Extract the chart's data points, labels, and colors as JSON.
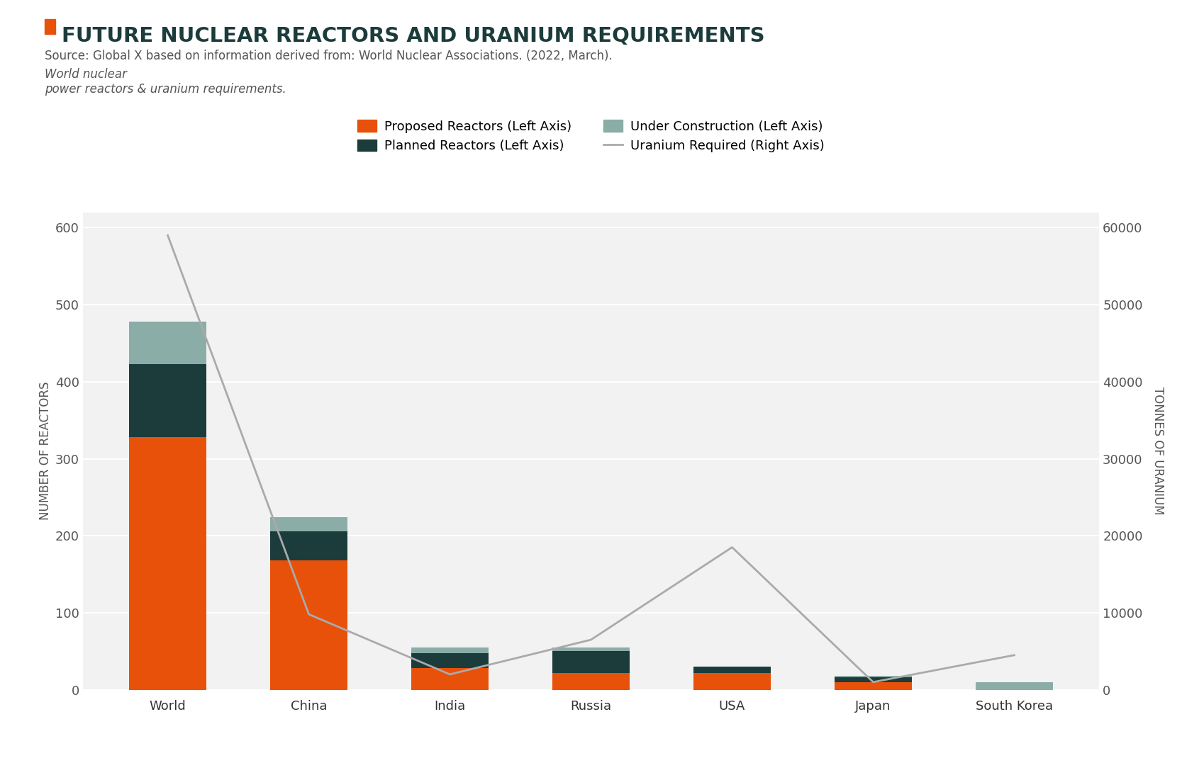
{
  "categories": [
    "World",
    "China",
    "India",
    "Russia",
    "USA",
    "Japan",
    "South Korea"
  ],
  "proposed": [
    328,
    168,
    28,
    22,
    22,
    10,
    0
  ],
  "planned": [
    95,
    38,
    20,
    28,
    8,
    6,
    0
  ],
  "under_construction": [
    55,
    18,
    7,
    5,
    0,
    2,
    10
  ],
  "uranium_required": [
    59000,
    9800,
    2000,
    6500,
    18500,
    1000,
    4500
  ],
  "color_proposed": "#E8510A",
  "color_planned": "#1C3C3C",
  "color_under_construction": "#8BADA8",
  "color_uranium_line": "#AAAAAA",
  "color_background": "#F2F2F2",
  "color_grid": "#FFFFFF",
  "color_title": "#1C3C3C",
  "color_subtitle": "#555555",
  "color_axis_label": "#555555",
  "color_accent": "#E8510A",
  "title": "FUTURE NUCLEAR REACTORS AND URANIUM REQUIREMENTS",
  "subtitle_normal": "Source: Global X based on information derived from: World Nuclear Associations. (2022, March). ",
  "subtitle_italic": "World nuclear\npower reactors & uranium requirements.",
  "legend_labels": [
    "Proposed Reactors (Left Axis)",
    "Planned Reactors (Left Axis)",
    "Under Construction (Left Axis)",
    "Uranium Required (Right Axis)"
  ],
  "ylabel_left": "NUMBER OF REACTORS",
  "ylabel_right": "TONNES OF URANIUM",
  "ylim_left": [
    0,
    620
  ],
  "ylim_right": [
    0,
    62000
  ],
  "yticks_left": [
    0,
    100,
    200,
    300,
    400,
    500,
    600
  ],
  "yticks_right": [
    0,
    10000,
    20000,
    30000,
    40000,
    50000,
    60000
  ],
  "bar_width": 0.55
}
